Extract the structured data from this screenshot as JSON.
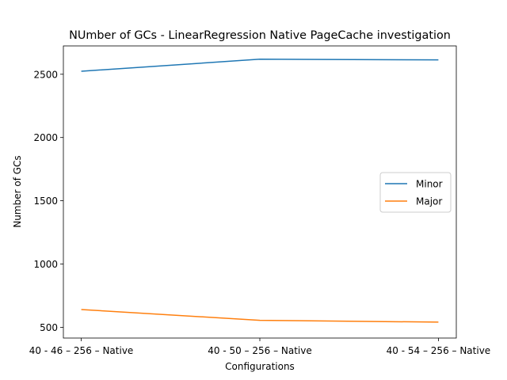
{
  "chart_data": {
    "type": "line",
    "title": "NUmber of GCs - LinearRegression Native PageCache investigation",
    "xlabel": "Configurations",
    "ylabel": "Number of GCs",
    "categories": [
      "40 - 46 – 256 – Native",
      "40 - 50 – 256 – Native",
      "40 - 54 – 256 – Native"
    ],
    "series": [
      {
        "name": "Minor",
        "color": "#1f77b4",
        "values": [
          2524,
          2619,
          2614
        ]
      },
      {
        "name": "Major",
        "color": "#ff7f0e",
        "values": [
          640,
          555,
          541
        ]
      }
    ],
    "yticks": [
      500,
      1000,
      1500,
      2000,
      2500
    ],
    "ylim": [
      415,
      2724
    ],
    "grid": false,
    "legend_position": "center-right"
  }
}
